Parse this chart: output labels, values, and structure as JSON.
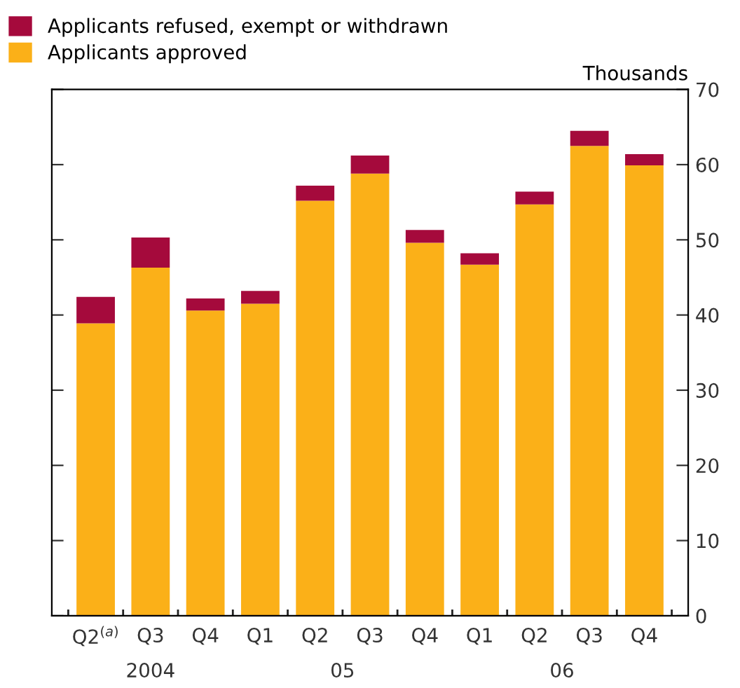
{
  "chart_data": {
    "type": "bar",
    "stacked": true,
    "categories": [
      "Q2$^{(a)}$",
      "Q3",
      "Q4",
      "Q1",
      "Q2",
      "Q3",
      "Q4",
      "Q1",
      "Q2",
      "Q3",
      "Q4"
    ],
    "series": [
      {
        "name": "Applicants approved",
        "color": "#fbb018",
        "values": [
          38.9,
          46.3,
          40.6,
          41.5,
          55.2,
          58.8,
          49.6,
          46.7,
          54.7,
          62.5,
          59.9
        ]
      },
      {
        "name": "Applicants refused, exempt or withdrawn",
        "color": "#a50a3c",
        "values": [
          3.5,
          4.0,
          1.6,
          1.7,
          2.0,
          2.4,
          1.7,
          1.5,
          1.7,
          2.0,
          1.5
        ]
      }
    ],
    "ylabel": "Thousands",
    "ylim": [
      0,
      70
    ],
    "yticks": [
      0,
      10,
      20,
      30,
      40,
      50,
      60,
      70
    ],
    "annotations": [
      "2004",
      "05",
      "06"
    ],
    "grid": false,
    "legend": "top left"
  }
}
